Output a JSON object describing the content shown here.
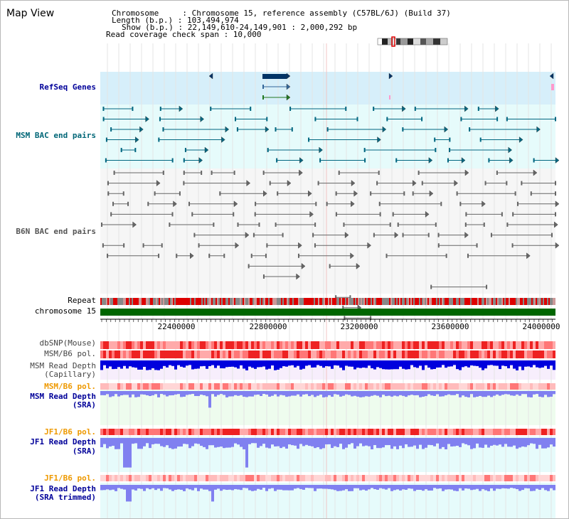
{
  "header": {
    "title": "Map View",
    "chromosome_line": "Chromosome     : Chromosome 15, reference assembly (C57BL/6J) (Build 37)",
    "length_line": "Length (b.p.) : 103,494,974",
    "show_line": "Show (b.p.) : 22,149,610-24,149,901 : 2,000,292 bp",
    "coverage_line": "Read coverage check span : 10,000"
  },
  "tracks": {
    "refseq": "RefSeq Genes",
    "msm_bac": "MSM BAC end pairs",
    "b6n_bac": "B6N BAC end pairs",
    "repeat": "Repeat",
    "chromosome": "chromosome 15",
    "dbsnp": "dbSNP(Mouse)",
    "msm_pol": "MSM/B6 pol.",
    "msm_depth_cap_1": "MSM Read Depth",
    "msm_depth_cap_2": "(Capillary)",
    "msm_pol_2": "MSM/B6 pol.",
    "msm_depth_sra_1": "MSM Read Depth",
    "msm_depth_sra_2": "(SRA)",
    "jf1_pol": "JF1/B6 pol.",
    "jf1_depth_sra_1": "JF1 Read Depth",
    "jf1_depth_sra_2": "(SRA)",
    "jf1_pol_2": "JF1/B6 pol.",
    "jf1_depth_trim_1": "JF1 Read Depth",
    "jf1_depth_trim_2": "(SRA trimmed)"
  },
  "axis": {
    "ticks": [
      "22400000",
      "22800000",
      "23200000",
      "23600000",
      "24000000"
    ],
    "start_bp": 22149610,
    "end_bp": 24149901
  },
  "colors": {
    "refseq_bg": "#d6effa",
    "msm_bg": "#e6fbfb",
    "gene": "#003366",
    "msm_feature": "#006680",
    "b6n_feature": "#666666",
    "repeat_red": "#dd0000",
    "repeat_gray": "#888888",
    "chromosome": "#006600",
    "depth_blue": "#0000dd",
    "depth_light": "#8080f0",
    "pol_red": "#ee3333",
    "label_navy": "#000099",
    "label_teal": "#006677",
    "label_orange": "#ee9900"
  }
}
